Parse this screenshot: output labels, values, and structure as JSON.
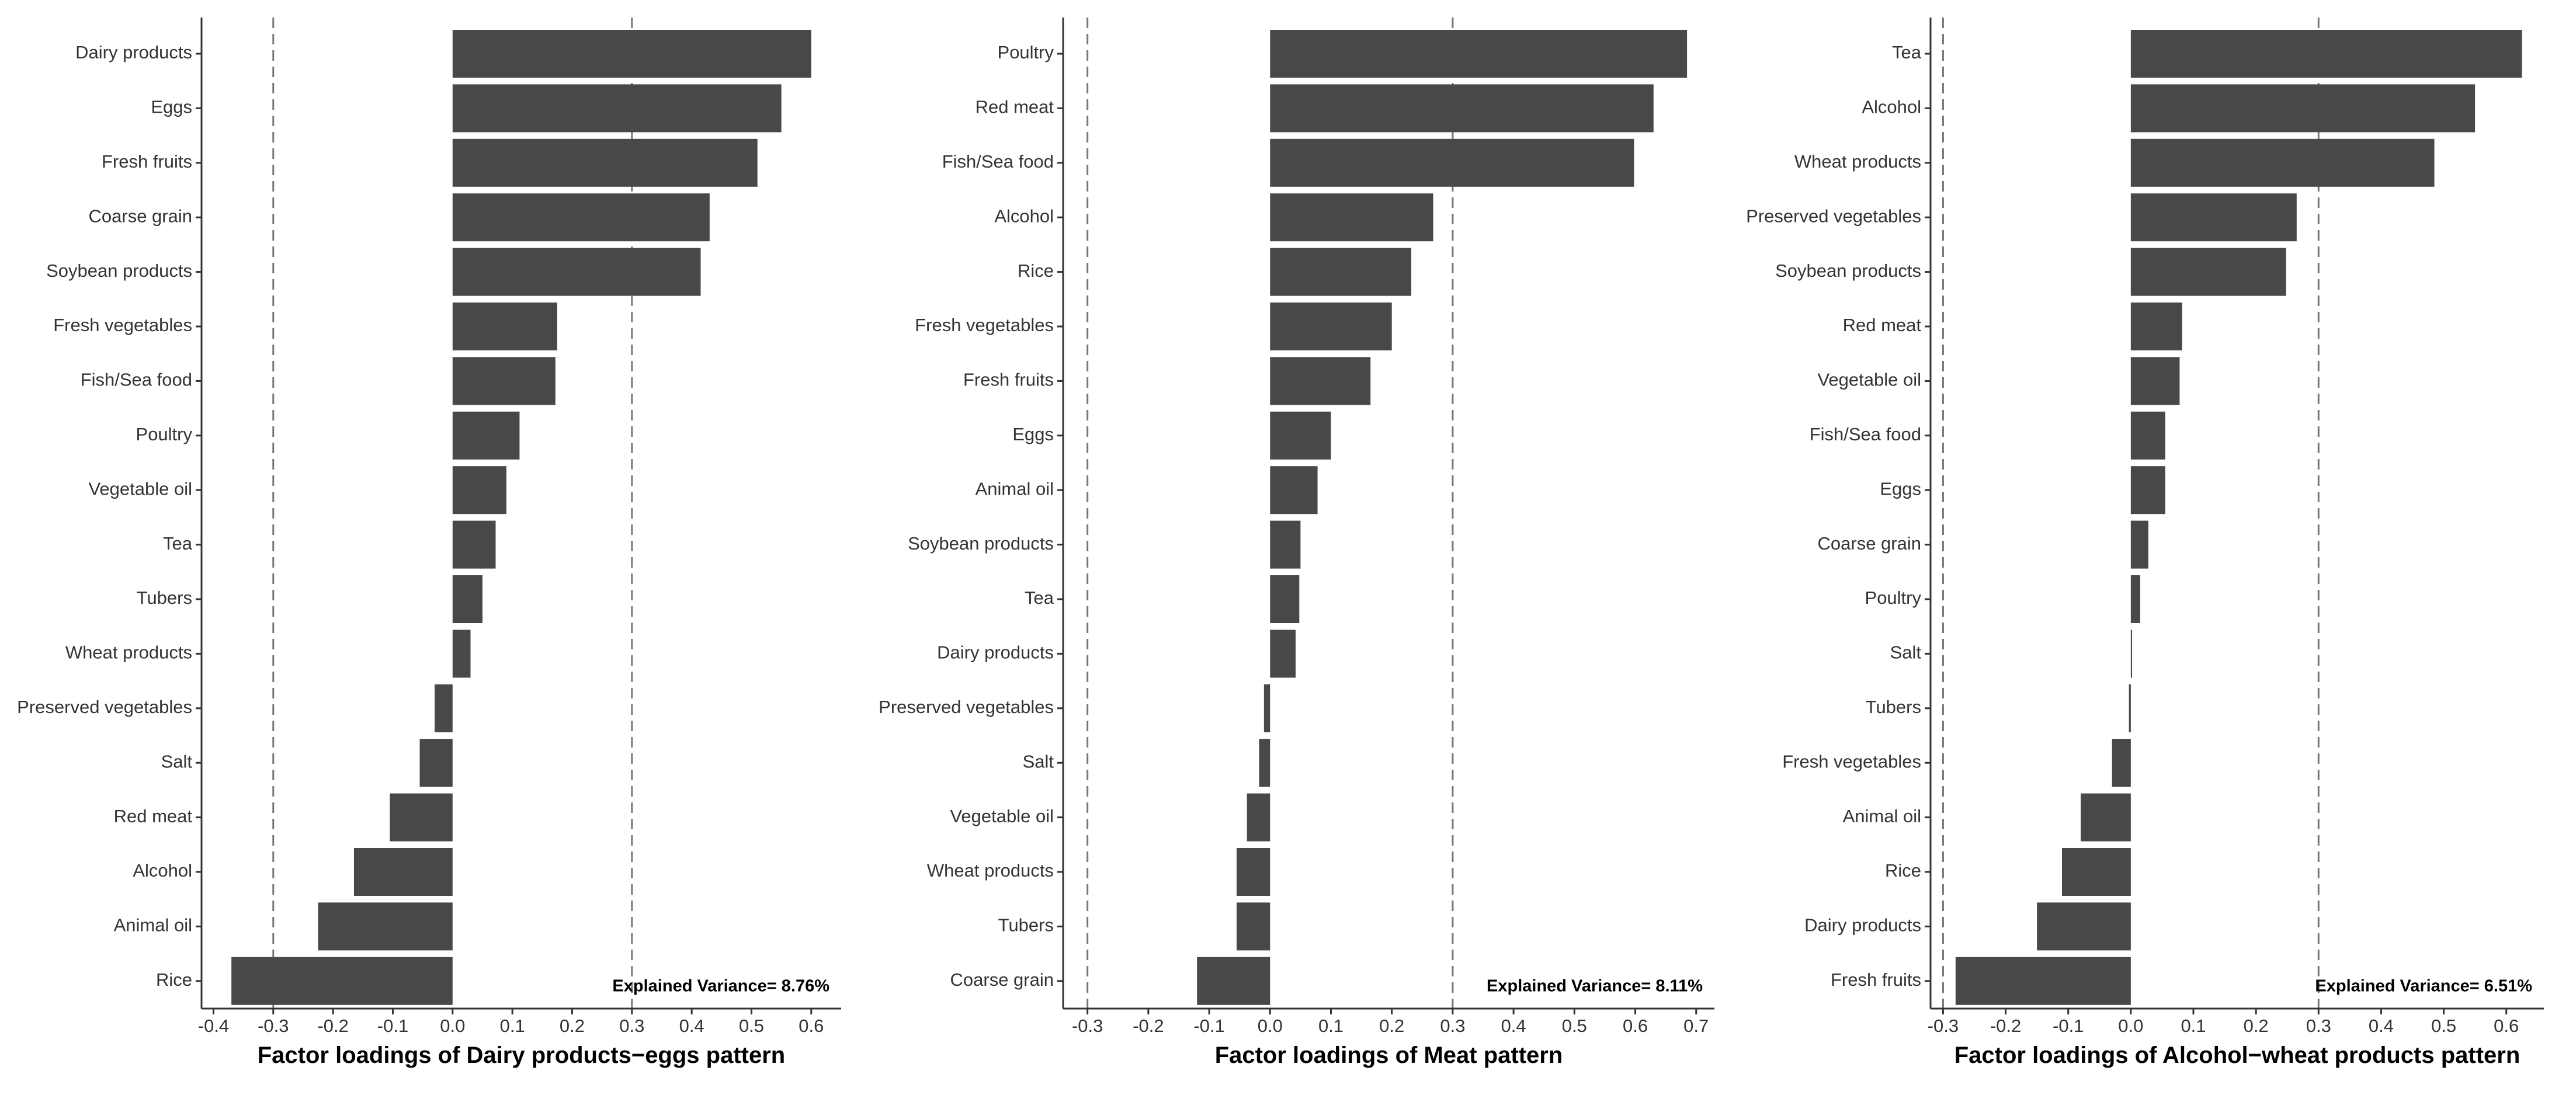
{
  "colors": {
    "bar": "#484848",
    "axis": "#333333",
    "reference_line": "#777777",
    "background": "#ffffff"
  },
  "chart_data": [
    {
      "type": "bar",
      "orientation": "horizontal",
      "xlabel": "Factor loadings of Dairy products−eggs pattern",
      "annotation": "Explained Variance= 8.76%",
      "xlim": [
        -0.42,
        0.65
      ],
      "xticks": [
        -0.4,
        -0.3,
        -0.2,
        -0.1,
        0.0,
        0.1,
        0.2,
        0.3,
        0.4,
        0.5,
        0.6
      ],
      "xtick_labels": [
        "-0.4",
        "-0.3",
        "-0.2",
        "-0.1",
        "0.0",
        "0.1",
        "0.2",
        "0.3",
        "0.4",
        "0.5",
        "0.6"
      ],
      "reference_lines": [
        -0.3,
        0.3
      ],
      "categories": [
        "Dairy products",
        "Eggs",
        "Fresh fruits",
        "Coarse grain",
        "Soybean products",
        "Fresh vegetables",
        "Fish/Sea food",
        "Poultry",
        "Vegetable oil",
        "Tea",
        "Tubers",
        "Wheat products",
        "Preserved vegetables",
        "Salt",
        "Red meat",
        "Alcohol",
        "Animal oil",
        "Rice"
      ],
      "values": [
        0.6,
        0.55,
        0.51,
        0.43,
        0.415,
        0.175,
        0.172,
        0.112,
        0.09,
        0.072,
        0.05,
        0.03,
        -0.03,
        -0.055,
        -0.105,
        -0.165,
        -0.225,
        -0.37
      ]
    },
    {
      "type": "bar",
      "orientation": "horizontal",
      "xlabel": "Factor loadings of Meat pattern",
      "annotation": "Explained Variance= 8.11%",
      "xlim": [
        -0.34,
        0.73
      ],
      "xticks": [
        -0.3,
        -0.2,
        -0.1,
        0.0,
        0.1,
        0.2,
        0.3,
        0.4,
        0.5,
        0.6,
        0.7
      ],
      "xtick_labels": [
        "-0.3",
        "-0.2",
        "-0.1",
        "0.0",
        "0.1",
        "0.2",
        "0.3",
        "0.4",
        "0.5",
        "0.6",
        "0.7"
      ],
      "reference_lines": [
        -0.3,
        0.3
      ],
      "categories": [
        "Poultry",
        "Red meat",
        "Fish/Sea food",
        "Alcohol",
        "Rice",
        "Fresh vegetables",
        "Fresh fruits",
        "Eggs",
        "Animal oil",
        "Soybean products",
        "Tea",
        "Dairy products",
        "Preserved vegetables",
        "Salt",
        "Vegetable oil",
        "Wheat products",
        "Tubers",
        "Coarse grain"
      ],
      "values": [
        0.685,
        0.63,
        0.598,
        0.268,
        0.232,
        0.2,
        0.165,
        0.1,
        0.078,
        0.05,
        0.048,
        0.042,
        -0.01,
        -0.018,
        -0.038,
        -0.055,
        -0.055,
        -0.12
      ]
    },
    {
      "type": "bar",
      "orientation": "horizontal",
      "xlabel": "Factor loadings of Alcohol−wheat products pattern",
      "annotation": "Explained Variance= 6.51%",
      "xlim": [
        -0.32,
        0.66
      ],
      "xticks": [
        -0.3,
        -0.2,
        -0.1,
        0.0,
        0.1,
        0.2,
        0.3,
        0.4,
        0.5,
        0.6
      ],
      "xtick_labels": [
        "-0.3",
        "-0.2",
        "-0.1",
        "0.0",
        "0.1",
        "0.2",
        "0.3",
        "0.4",
        "0.5",
        "0.6"
      ],
      "reference_lines": [
        -0.3,
        0.3
      ],
      "categories": [
        "Tea",
        "Alcohol",
        "Wheat products",
        "Preserved vegetables",
        "Soybean products",
        "Red meat",
        "Vegetable oil",
        "Fish/Sea food",
        "Eggs",
        "Coarse grain",
        "Poultry",
        "Salt",
        "Tubers",
        "Fresh vegetables",
        "Animal oil",
        "Rice",
        "Dairy products",
        "Fresh fruits"
      ],
      "values": [
        0.625,
        0.55,
        0.485,
        0.265,
        0.248,
        0.082,
        0.078,
        0.055,
        0.055,
        0.028,
        0.015,
        0.002,
        -0.003,
        -0.03,
        -0.08,
        -0.11,
        -0.15,
        -0.28
      ]
    }
  ]
}
